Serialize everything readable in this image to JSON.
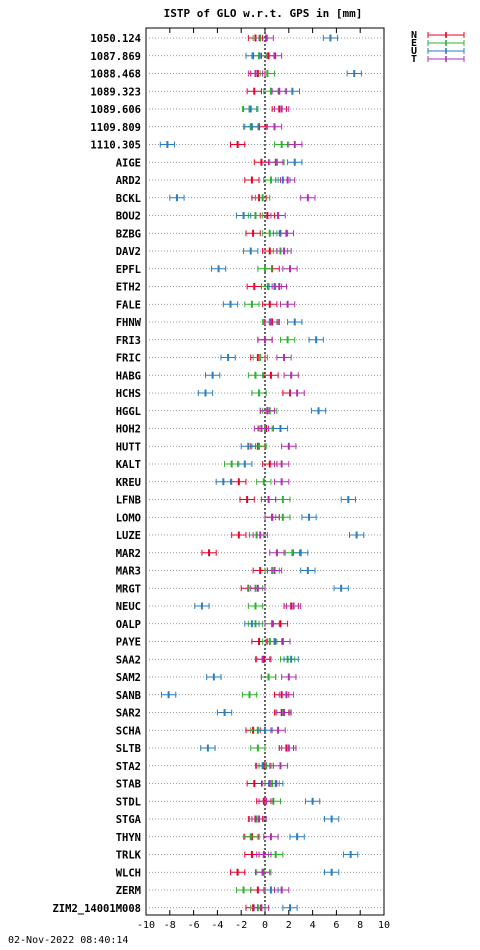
{
  "chart_data": {
    "type": "scatter",
    "title": "ISTP of GLO w.r.t. GPS in [mm]",
    "xlim": [
      -10,
      10
    ],
    "xticks": [
      -10,
      -8,
      -6,
      -4,
      -2,
      0,
      2,
      4,
      6,
      8,
      10
    ],
    "grid": "dotted horizontal",
    "legend_placement": "top-right",
    "error_half_width": 0.6,
    "series": [
      {
        "name": "N",
        "color": "#e8002a"
      },
      {
        "name": "E",
        "color": "#2fb02f"
      },
      {
        "name": "U",
        "color": "#2a7ec0"
      },
      {
        "name": "T",
        "color": "#b02fb0"
      }
    ],
    "stations": [
      "1050.124",
      "1087.869",
      "1088.468",
      "1089.323",
      "1089.606",
      "1109.809",
      "1110.305",
      "AIGE",
      "ARD2",
      "BCKL",
      "BOU2",
      "BZBG",
      "DAV2",
      "EPFL",
      "ETH2",
      "FALE",
      "FHNW",
      "FRI3",
      "FRIC",
      "HABG",
      "HCHS",
      "HGGL",
      "HOH2",
      "HUTT",
      "KALT",
      "KREU",
      "LFNB",
      "LOMO",
      "LUZE",
      "MAR2",
      "MAR3",
      "MRGT",
      "NEUC",
      "OALP",
      "PAYE",
      "SAA2",
      "SAM2",
      "SANB",
      "SAR2",
      "SCHA",
      "SLTB",
      "STA2",
      "STAB",
      "STDL",
      "STGA",
      "THYN",
      "TRLK",
      "WLCH",
      "ZERM",
      "ZIM2_14001M008"
    ],
    "values": [
      [
        -0.8,
        -0.4,
        5.5,
        0.1
      ],
      [
        0.3,
        -0.5,
        -1.0,
        0.8
      ],
      [
        -0.6,
        0.2,
        7.5,
        -0.8
      ],
      [
        -0.9,
        0.5,
        2.3,
        1.2
      ],
      [
        1.2,
        -1.3,
        -1.2,
        1.4
      ],
      [
        -0.5,
        -1.2,
        -1.1,
        0.8
      ],
      [
        -2.3,
        1.4,
        -8.2,
        2.5
      ],
      [
        -0.3,
        1.0,
        2.5,
        0.9
      ],
      [
        -1.1,
        0.5,
        1.5,
        1.9
      ],
      [
        -0.5,
        -0.2,
        -7.4,
        3.6
      ],
      [
        0.2,
        -0.8,
        -1.8,
        1.1
      ],
      [
        -1.0,
        0.4,
        1.3,
        1.8
      ],
      [
        0.4,
        1.3,
        -1.2,
        1.6
      ],
      [
        0.6,
        0.0,
        -3.9,
        2.1
      ],
      [
        -0.9,
        0.3,
        0.8,
        1.2
      ],
      [
        0.4,
        -1.1,
        -2.9,
        1.9
      ],
      [
        0.6,
        0.4,
        2.5,
        0.5
      ],
      [
        0.0,
        1.9,
        4.3,
        0.0
      ],
      [
        -0.6,
        -0.4,
        -3.1,
        1.6
      ],
      [
        0.5,
        -0.8,
        -4.4,
        2.2
      ],
      [
        2.1,
        -0.5,
        -5.0,
        2.7
      ],
      [
        0.2,
        0.4,
        4.5,
        0.2
      ],
      [
        0.1,
        0.0,
        1.3,
        -0.3
      ],
      [
        -0.6,
        -0.5,
        -1.4,
        2.0
      ],
      [
        0.4,
        -2.8,
        -1.7,
        1.4
      ],
      [
        -2.2,
        -0.1,
        -3.5,
        1.4
      ],
      [
        -1.5,
        1.5,
        7.0,
        0.3
      ],
      [
        0.6,
        1.5,
        3.7,
        0.6
      ],
      [
        -2.2,
        -0.7,
        7.7,
        -0.4
      ],
      [
        -4.7,
        2.3,
        3.0,
        1.0
      ],
      [
        -0.4,
        0.6,
        3.6,
        0.8
      ],
      [
        -1.4,
        -0.8,
        6.4,
        -0.6
      ],
      [
        2.2,
        -0.8,
        -5.3,
        2.4
      ],
      [
        1.3,
        -0.8,
        -1.1,
        0.6
      ],
      [
        -0.5,
        0.4,
        0.8,
        1.5
      ],
      [
        -0.1,
        1.9,
        2.2,
        -0.2
      ],
      [
        0.3,
        0.3,
        -4.3,
        2.0
      ],
      [
        1.4,
        -1.3,
        -8.1,
        1.8
      ],
      [
        1.4,
        1.5,
        -3.4,
        1.6
      ],
      [
        -1.0,
        -0.6,
        0.0,
        1.1
      ],
      [
        1.8,
        -0.6,
        -4.8,
        2.0
      ],
      [
        -0.1,
        0.1,
        -0.2,
        1.3
      ],
      [
        -0.9,
        0.6,
        0.9,
        0.4
      ],
      [
        -0.1,
        0.7,
        4.0,
        0.1
      ],
      [
        -0.8,
        -0.7,
        5.6,
        -0.5
      ],
      [
        -1.1,
        -1.2,
        2.7,
        0.5
      ],
      [
        -1.1,
        0.9,
        7.2,
        -0.1
      ],
      [
        -2.3,
        -0.1,
        5.6,
        -0.2
      ],
      [
        -0.6,
        -1.8,
        0.5,
        1.4
      ],
      [
        -1.0,
        -0.6,
        2.1,
        -0.3
      ]
    ]
  },
  "footer": {
    "timestamp": "02-Nov-2022 08:40:14"
  }
}
